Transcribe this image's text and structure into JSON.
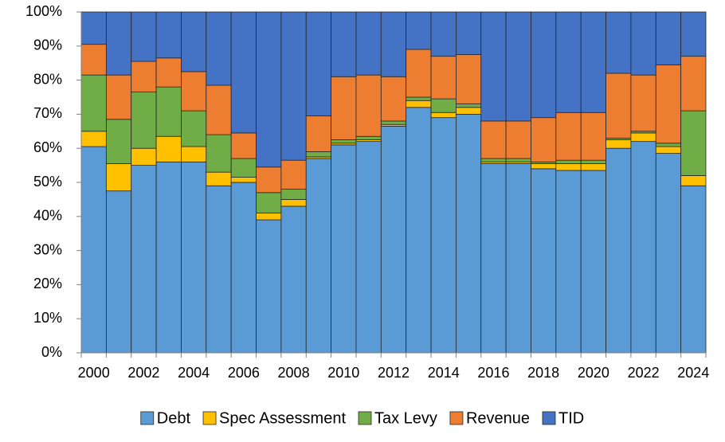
{
  "chart_data": {
    "type": "stacked_bar_100",
    "categories": [
      "2000",
      null,
      "2002",
      null,
      "2004",
      null,
      "2006",
      null,
      "2008",
      null,
      "2010",
      null,
      "2012",
      null,
      "2014",
      null,
      "2016",
      null,
      "2018",
      null,
      "2020",
      null,
      "2022",
      null,
      "2024"
    ],
    "series": [
      {
        "name": "Debt",
        "color": "#5b9bd5",
        "values": [
          60.5,
          47.5,
          55,
          56,
          56,
          49,
          50,
          39,
          43,
          57,
          61,
          62,
          66.5,
          72,
          69,
          70,
          55.5,
          55.5,
          54,
          53.5,
          53.5,
          60,
          62,
          58.5,
          49
        ]
      },
      {
        "name": "Spec Assessment",
        "color": "#ffc000",
        "values": [
          4.5,
          8,
          5,
          7.5,
          4.5,
          4,
          1.5,
          2,
          2,
          0.5,
          0.5,
          0.5,
          0.5,
          2,
          1.5,
          2,
          0.5,
          0.5,
          1.5,
          2,
          2,
          2.5,
          2.5,
          2,
          3
        ]
      },
      {
        "name": "Tax Levy",
        "color": "#70ad47",
        "values": [
          16.5,
          13,
          16.5,
          14.5,
          10.5,
          11,
          5.5,
          6,
          3,
          1.5,
          1,
          1,
          1,
          1,
          4,
          1,
          1,
          1,
          0.5,
          1,
          1,
          0.5,
          0.5,
          1,
          19
        ]
      },
      {
        "name": "Revenue",
        "color": "#ed7d31",
        "values": [
          9,
          13,
          9,
          8.5,
          11.5,
          14.5,
          7.5,
          7.5,
          8.5,
          10.5,
          18.5,
          18,
          13,
          14,
          12.5,
          14.5,
          11,
          11,
          13,
          14,
          14,
          19,
          16.5,
          23,
          16
        ]
      },
      {
        "name": "TID",
        "color": "#4472c4",
        "values": [
          9.5,
          18.5,
          14.5,
          13.5,
          17.5,
          21.5,
          35.5,
          45.5,
          43.5,
          30.5,
          19,
          18.5,
          19,
          11,
          13,
          12.5,
          32,
          32,
          31,
          29.5,
          29.5,
          18,
          18.5,
          15.5,
          13
        ]
      }
    ],
    "ylim": [
      0,
      100
    ],
    "yticks": [
      {
        "value": 0,
        "label": "0%"
      },
      {
        "value": 10,
        "label": "10%"
      },
      {
        "value": 20,
        "label": "20%"
      },
      {
        "value": 30,
        "label": "30%"
      },
      {
        "value": 40,
        "label": "40%"
      },
      {
        "value": 50,
        "label": "50%"
      },
      {
        "value": 60,
        "label": "60%"
      },
      {
        "value": 70,
        "label": "70%"
      },
      {
        "value": 80,
        "label": "80%"
      },
      {
        "value": 90,
        "label": "90%"
      },
      {
        "value": 100,
        "label": "100%"
      }
    ],
    "legend": "bottom"
  }
}
